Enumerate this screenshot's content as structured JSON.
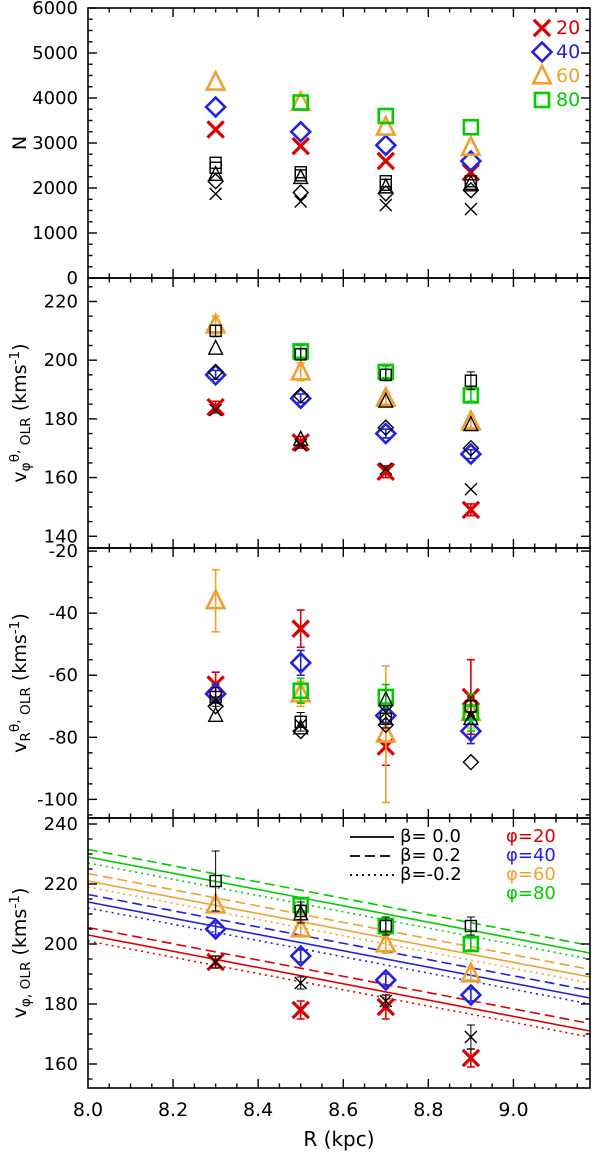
{
  "figure": {
    "xlabel": "R (kpc)",
    "xlim": [
      8.0,
      9.18
    ],
    "x_major_ticks": [
      8.0,
      8.2,
      8.4,
      8.6,
      8.8,
      9.0
    ],
    "x_tick_labels": [
      "8.0",
      "8.2",
      "8.4",
      "8.6",
      "8.8",
      "9.0"
    ],
    "x_minor_step": 0.05,
    "colors": {
      "red": "#dd0000",
      "blue": "#2222dd",
      "orange": "#f0a030",
      "green": "#00cc00",
      "black": "#000000"
    }
  },
  "chart_data": [
    {
      "id": "counts",
      "type": "scatter",
      "ylabel": "N",
      "ylim": [
        0,
        6000
      ],
      "y_major_ticks": [
        0,
        1000,
        2000,
        3000,
        4000,
        5000,
        6000
      ],
      "y_minor_step": 250,
      "legend": [
        {
          "label": "20",
          "symbol": "x",
          "color": "red"
        },
        {
          "label": "40",
          "symbol": "diamond",
          "color": "blue"
        },
        {
          "label": "60",
          "symbol": "triangle",
          "color": "orange"
        },
        {
          "label": "80",
          "symbol": "square",
          "color": "green"
        }
      ],
      "series": [
        {
          "name": "phi-20",
          "symbol": "x",
          "color": "red",
          "bold": true,
          "x": [
            8.3,
            8.5,
            8.7,
            8.9
          ],
          "y": [
            3300,
            2930,
            2600,
            2350
          ]
        },
        {
          "name": "phi-40",
          "symbol": "diamond",
          "color": "blue",
          "bold": true,
          "x": [
            8.3,
            8.5,
            8.7,
            8.9
          ],
          "y": [
            3800,
            3250,
            2950,
            2600
          ]
        },
        {
          "name": "phi-60",
          "symbol": "triangle",
          "color": "orange",
          "bold": true,
          "x": [
            8.3,
            8.5,
            8.7,
            8.9
          ],
          "y": [
            4350,
            3900,
            3350,
            2900
          ]
        },
        {
          "name": "phi-80",
          "symbol": "square",
          "color": "green",
          "bold": true,
          "x": [
            8.5,
            8.7,
            8.9
          ],
          "y": [
            3900,
            3600,
            3350
          ]
        },
        {
          "name": "black-square-a",
          "symbol": "square",
          "color": "black",
          "x": [
            8.3,
            8.5,
            8.7,
            8.9
          ],
          "y": [
            2560,
            2350,
            2150,
            2150
          ]
        },
        {
          "name": "black-square-b",
          "symbol": "square",
          "color": "black",
          "x": [
            8.3,
            8.5,
            8.7,
            8.9
          ],
          "y": [
            2450,
            2280,
            2070,
            2060
          ]
        },
        {
          "name": "black-triangle",
          "symbol": "triangle",
          "color": "black",
          "x": [
            8.3,
            8.5,
            8.7,
            8.9
          ],
          "y": [
            2300,
            2230,
            2020,
            2100
          ]
        },
        {
          "name": "black-diamond",
          "symbol": "diamond",
          "color": "black",
          "x": [
            8.3,
            8.5,
            8.7,
            8.9
          ],
          "y": [
            2150,
            1900,
            1880,
            1950
          ]
        },
        {
          "name": "black-x",
          "symbol": "x",
          "color": "black",
          "x": [
            8.3,
            8.5,
            8.7,
            8.9
          ],
          "y": [
            1870,
            1700,
            1620,
            1530
          ]
        }
      ]
    },
    {
      "id": "vphi-theta-olr",
      "type": "scatter",
      "ylabel": "v_{φ}^{θ,}_{ OLR} (kms^{-1})",
      "ylim": [
        136,
        228
      ],
      "y_major_ticks": [
        140,
        160,
        180,
        200,
        220
      ],
      "y_minor_step": 5,
      "series": [
        {
          "name": "phi-20",
          "symbol": "x",
          "color": "red",
          "bold": true,
          "x": [
            8.3,
            8.5,
            8.7,
            8.9
          ],
          "y": [
            184,
            172,
            162,
            149
          ],
          "yerr": [
            2,
            2,
            2,
            2
          ]
        },
        {
          "name": "phi-40",
          "symbol": "diamond",
          "color": "blue",
          "bold": true,
          "x": [
            8.3,
            8.5,
            8.7,
            8.9
          ],
          "y": [
            195,
            187,
            175,
            168
          ],
          "yerr": [
            1.5,
            1.5,
            1.5,
            1.5
          ]
        },
        {
          "name": "phi-60",
          "symbol": "triangle",
          "color": "orange",
          "bold": true,
          "x": [
            8.3,
            8.5,
            8.7,
            8.9
          ],
          "y": [
            212,
            196,
            187,
            179
          ],
          "yerr": [
            3,
            3,
            2,
            2
          ]
        },
        {
          "name": "phi-80",
          "symbol": "square",
          "color": "green",
          "bold": true,
          "x": [
            8.5,
            8.7,
            8.9
          ],
          "y": [
            203,
            196,
            188
          ],
          "yerr": [
            2,
            2,
            2
          ]
        },
        {
          "name": "black-square",
          "symbol": "square",
          "color": "black",
          "x": [
            8.3,
            8.5,
            8.7,
            8.9
          ],
          "y": [
            210,
            202,
            195,
            193
          ],
          "yerr": [
            2,
            2,
            2,
            3
          ]
        },
        {
          "name": "black-triangle",
          "symbol": "triangle",
          "color": "black",
          "x": [
            8.3,
            8.5,
            8.7,
            8.9
          ],
          "y": [
            204,
            173,
            186,
            178
          ]
        },
        {
          "name": "black-diamond",
          "symbol": "diamond",
          "color": "black",
          "x": [
            8.3,
            8.5,
            8.7,
            8.9
          ],
          "y": [
            196,
            188,
            177,
            170
          ]
        },
        {
          "name": "black-x",
          "symbol": "x",
          "color": "black",
          "x": [
            8.3,
            8.5,
            8.7,
            8.9
          ],
          "y": [
            183,
            171,
            163,
            156
          ]
        }
      ]
    },
    {
      "id": "vr-theta-olr",
      "type": "scatter",
      "ylabel": "v_{R}^{θ,}_{ OLR} (kms^{-1})",
      "ylim": [
        -106,
        -19
      ],
      "y_major_ticks": [
        -100,
        -80,
        -60,
        -40,
        -20
      ],
      "y_minor_step": 5,
      "series": [
        {
          "name": "phi-20",
          "symbol": "x",
          "color": "red",
          "bold": true,
          "x": [
            8.3,
            8.5,
            8.7,
            8.9
          ],
          "y": [
            -63,
            -45,
            -83,
            -67
          ],
          "yerr": [
            4,
            6,
            6,
            12
          ]
        },
        {
          "name": "phi-40",
          "symbol": "diamond",
          "color": "blue",
          "bold": true,
          "x": [
            8.3,
            8.5,
            8.7,
            8.9
          ],
          "y": [
            -66,
            -56,
            -73,
            -78
          ],
          "yerr": [
            3,
            4,
            4,
            4
          ]
        },
        {
          "name": "phi-60",
          "symbol": "triangle",
          "color": "orange",
          "bold": true,
          "x": [
            8.3,
            8.5,
            8.7,
            8.9
          ],
          "y": [
            -36,
            -66,
            -79,
            -72
          ],
          "yerr": [
            10,
            4,
            22,
            5
          ]
        },
        {
          "name": "phi-80",
          "symbol": "square",
          "color": "green",
          "bold": true,
          "x": [
            8.5,
            8.7,
            8.9
          ],
          "y": [
            -65,
            -67,
            -72
          ],
          "yerr": [
            4,
            4,
            6
          ]
        },
        {
          "name": "black-square",
          "symbol": "square",
          "color": "black",
          "x": [
            8.3,
            8.5,
            8.7,
            8.9
          ],
          "y": [
            -67,
            -75,
            -74,
            -70
          ],
          "yerr": [
            3,
            3,
            3,
            3
          ]
        },
        {
          "name": "black-triangle",
          "symbol": "triangle",
          "color": "black",
          "x": [
            8.3,
            8.5,
            8.7,
            8.9
          ],
          "y": [
            -73,
            -77,
            -68,
            -74
          ]
        },
        {
          "name": "black-diamond",
          "symbol": "diamond",
          "color": "black",
          "x": [
            8.3,
            8.5,
            8.7,
            8.9
          ],
          "y": [
            -70,
            -78,
            -76,
            -88
          ]
        },
        {
          "name": "black-x",
          "symbol": "x",
          "color": "black",
          "x": [
            8.3,
            8.5,
            8.7,
            8.9
          ],
          "y": [
            -68,
            -76,
            -72,
            -73
          ]
        }
      ]
    },
    {
      "id": "vphi-olr",
      "type": "scatter",
      "ylabel": "v_{φ, OLR} (kms^{-1})",
      "ylim": [
        152,
        242
      ],
      "y_major_ticks": [
        160,
        180,
        200,
        220,
        240
      ],
      "y_minor_step": 5,
      "legend": {
        "beta": [
          {
            "label": "β= 0.0",
            "style": "solid"
          },
          {
            "label": "β= 0.2",
            "style": "dashed"
          },
          {
            "label": "β=-0.2",
            "style": "dotted"
          }
        ],
        "phi": [
          {
            "label": "φ=20",
            "color": "red"
          },
          {
            "label": "φ=40",
            "color": "blue"
          },
          {
            "label": "φ=60",
            "color": "orange"
          },
          {
            "label": "φ=80",
            "color": "green"
          }
        ]
      },
      "lines": [
        {
          "color": "green",
          "style": "dashed",
          "y": [
            231.5,
            199.5
          ]
        },
        {
          "color": "green",
          "style": "solid",
          "y": [
            229,
            197
          ]
        },
        {
          "color": "green",
          "style": "dotted",
          "y": [
            227,
            195
          ]
        },
        {
          "color": "orange",
          "style": "dashed",
          "y": [
            223.5,
            191.5
          ]
        },
        {
          "color": "orange",
          "style": "solid",
          "y": [
            221,
            189
          ]
        },
        {
          "color": "orange",
          "style": "dotted",
          "y": [
            219,
            187
          ]
        },
        {
          "color": "blue",
          "style": "dashed",
          "y": [
            216.5,
            184.5
          ]
        },
        {
          "color": "blue",
          "style": "solid",
          "y": [
            214,
            182
          ]
        },
        {
          "color": "blue",
          "style": "dotted",
          "y": [
            212,
            180
          ]
        },
        {
          "color": "red",
          "style": "dashed",
          "y": [
            205.5,
            173.5
          ]
        },
        {
          "color": "red",
          "style": "solid",
          "y": [
            203,
            171
          ]
        },
        {
          "color": "red",
          "style": "dotted",
          "y": [
            201,
            169
          ]
        }
      ],
      "series": [
        {
          "name": "phi-20",
          "symbol": "x",
          "color": "red",
          "bold": true,
          "x": [
            8.3,
            8.5,
            8.7,
            8.9
          ],
          "y": [
            194,
            178,
            179,
            162
          ],
          "yerr": [
            2,
            3,
            4,
            3
          ]
        },
        {
          "name": "phi-40",
          "symbol": "diamond",
          "color": "blue",
          "bold": true,
          "x": [
            8.3,
            8.5,
            8.7,
            8.9
          ],
          "y": [
            205,
            196,
            188,
            183
          ],
          "yerr": [
            2,
            2,
            2,
            2
          ]
        },
        {
          "name": "phi-60",
          "symbol": "triangle",
          "color": "orange",
          "bold": true,
          "x": [
            8.3,
            8.5,
            8.7,
            8.9
          ],
          "y": [
            213,
            205,
            200,
            190
          ],
          "yerr": [
            2,
            2,
            3,
            2
          ]
        },
        {
          "name": "phi-80",
          "symbol": "square",
          "color": "green",
          "bold": true,
          "x": [
            8.5,
            8.7,
            8.9
          ],
          "y": [
            213,
            206,
            200
          ],
          "yerr": [
            2,
            2,
            2
          ]
        },
        {
          "name": "black-square",
          "symbol": "square",
          "color": "black",
          "x": [
            8.3,
            8.5,
            8.7,
            8.9
          ],
          "y": [
            221,
            211,
            206,
            206
          ],
          "yerr": [
            10,
            3,
            3,
            3
          ]
        },
        {
          "name": "black-triangle",
          "symbol": "triangle",
          "color": "black",
          "x": [
            8.5
          ],
          "y": [
            210
          ],
          "yerr": [
            3
          ]
        },
        {
          "name": "black-x",
          "symbol": "x",
          "color": "black",
          "x": [
            8.3,
            8.5,
            8.7,
            8.9
          ],
          "y": [
            194,
            187,
            181,
            169
          ],
          "yerr": [
            2,
            2,
            2,
            4
          ]
        }
      ]
    }
  ]
}
